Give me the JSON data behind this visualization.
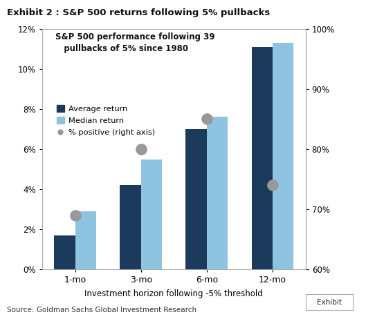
{
  "title_exhibit": "Exhibit 2 : S&P 500 returns following 5% pullbacks",
  "chart_title": "S&P 500 performance following 39\n   pullbacks of 5% since 1980",
  "categories": [
    "1-mo",
    "3-mo",
    "6-mo",
    "12-mo"
  ],
  "avg_return": [
    0.017,
    0.042,
    0.07,
    0.111
  ],
  "med_return": [
    0.029,
    0.055,
    0.076,
    0.113
  ],
  "pct_positive": [
    0.69,
    0.8,
    0.85,
    0.74
  ],
  "color_avg": "#1b3a5c",
  "color_med": "#8ec4e0",
  "color_dot": "#999999",
  "ylim_left": [
    0.0,
    0.12
  ],
  "ylim_right": [
    0.6,
    1.0
  ],
  "xlabel": "Investment horizon following -5% threshold",
  "source": "Source: Goldman Sachs Global Investment Research",
  "legend_labels": [
    "Average return",
    "Median return",
    "% positive (right axis)"
  ],
  "yticks_left": [
    0.0,
    0.02,
    0.04,
    0.06,
    0.08,
    0.1,
    0.12
  ],
  "yticks_right": [
    0.6,
    0.7,
    0.8,
    0.9,
    1.0
  ],
  "bar_width": 0.32,
  "dot_size": 120
}
